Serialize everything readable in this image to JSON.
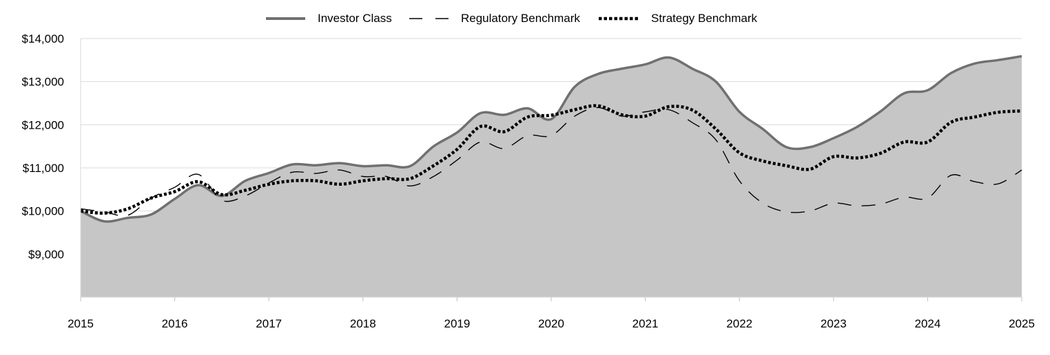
{
  "chart_data": {
    "type": "area",
    "title": "",
    "xlabel": "",
    "ylabel": "",
    "xlim": [
      2015,
      2025
    ],
    "ylim": [
      8000,
      14000
    ],
    "x_ticks": [
      "2015",
      "2016",
      "2017",
      "2018",
      "2019",
      "2020",
      "2021",
      "2022",
      "2023",
      "2024",
      "2025"
    ],
    "y_ticks": [
      {
        "value": 9000,
        "label": "$9,000"
      },
      {
        "value": 10000,
        "label": "$10,000"
      },
      {
        "value": 11000,
        "label": "$11,000"
      },
      {
        "value": 12000,
        "label": "$12,000"
      },
      {
        "value": 13000,
        "label": "$13,000"
      },
      {
        "value": 14000,
        "label": "$14,000"
      }
    ],
    "grid": true,
    "legend_position": "top-center",
    "series": [
      {
        "name": "Investor Class",
        "style": "solid-area",
        "color": "#707070",
        "fill": "#c6c6c6",
        "x": [
          2015,
          2015.25,
          2015.5,
          2015.75,
          2016,
          2016.25,
          2016.5,
          2016.75,
          2017,
          2017.25,
          2017.5,
          2017.75,
          2018,
          2018.25,
          2018.5,
          2018.75,
          2019,
          2019.25,
          2019.5,
          2019.75,
          2020,
          2020.25,
          2020.5,
          2020.75,
          2021,
          2021.25,
          2021.5,
          2021.75,
          2022,
          2022.25,
          2022.5,
          2022.75,
          2023,
          2023.25,
          2023.5,
          2023.75,
          2024,
          2024.25,
          2024.5,
          2024.75,
          2025
        ],
        "values": [
          10000,
          9760,
          9840,
          9920,
          10280,
          10600,
          10350,
          10700,
          10880,
          11080,
          11060,
          11110,
          11040,
          11060,
          11040,
          11500,
          11820,
          12270,
          12230,
          12380,
          12130,
          12880,
          13180,
          13300,
          13400,
          13560,
          13300,
          13000,
          12300,
          11900,
          11480,
          11480,
          11690,
          11950,
          12310,
          12730,
          12800,
          13200,
          13420,
          13500,
          13590
        ]
      },
      {
        "name": "Regulatory Benchmark",
        "style": "dashed",
        "color": "#000000",
        "x": [
          2015,
          2015.25,
          2015.5,
          2015.75,
          2016,
          2016.25,
          2016.5,
          2016.75,
          2017,
          2017.25,
          2017.5,
          2017.75,
          2018,
          2018.25,
          2018.5,
          2018.75,
          2019,
          2019.25,
          2019.5,
          2019.75,
          2020,
          2020.25,
          2020.5,
          2020.75,
          2021,
          2021.25,
          2021.5,
          2021.75,
          2022,
          2022.25,
          2022.5,
          2022.75,
          2023,
          2023.25,
          2023.5,
          2023.75,
          2024,
          2024.25,
          2024.5,
          2024.75,
          2025
        ],
        "values": [
          10050,
          9980,
          9900,
          10300,
          10550,
          10850,
          10250,
          10350,
          10650,
          10900,
          10870,
          10950,
          10800,
          10800,
          10580,
          10800,
          11180,
          11600,
          11450,
          11750,
          11750,
          12200,
          12400,
          12200,
          12300,
          12350,
          12050,
          11650,
          10700,
          10180,
          9980,
          10000,
          10180,
          10120,
          10160,
          10320,
          10300,
          10830,
          10680,
          10630,
          10950
        ]
      },
      {
        "name": "Strategy Benchmark",
        "style": "dotted",
        "color": "#000000",
        "x": [
          2015,
          2015.25,
          2015.5,
          2015.75,
          2016,
          2016.25,
          2016.5,
          2016.75,
          2017,
          2017.25,
          2017.5,
          2017.75,
          2018,
          2018.25,
          2018.5,
          2018.75,
          2019,
          2019.25,
          2019.5,
          2019.75,
          2020,
          2020.25,
          2020.5,
          2020.75,
          2021,
          2021.25,
          2021.5,
          2021.75,
          2022,
          2022.25,
          2022.5,
          2022.75,
          2023,
          2023.25,
          2023.5,
          2023.75,
          2024,
          2024.25,
          2024.5,
          2024.75,
          2025
        ],
        "values": [
          10000,
          9950,
          10050,
          10300,
          10450,
          10680,
          10380,
          10480,
          10620,
          10700,
          10700,
          10620,
          10700,
          10750,
          10750,
          11050,
          11430,
          11960,
          11840,
          12180,
          12220,
          12350,
          12440,
          12230,
          12200,
          12420,
          12340,
          11900,
          11350,
          11160,
          11050,
          10970,
          11260,
          11230,
          11340,
          11600,
          11600,
          12060,
          12180,
          12290,
          12320
        ]
      }
    ]
  }
}
